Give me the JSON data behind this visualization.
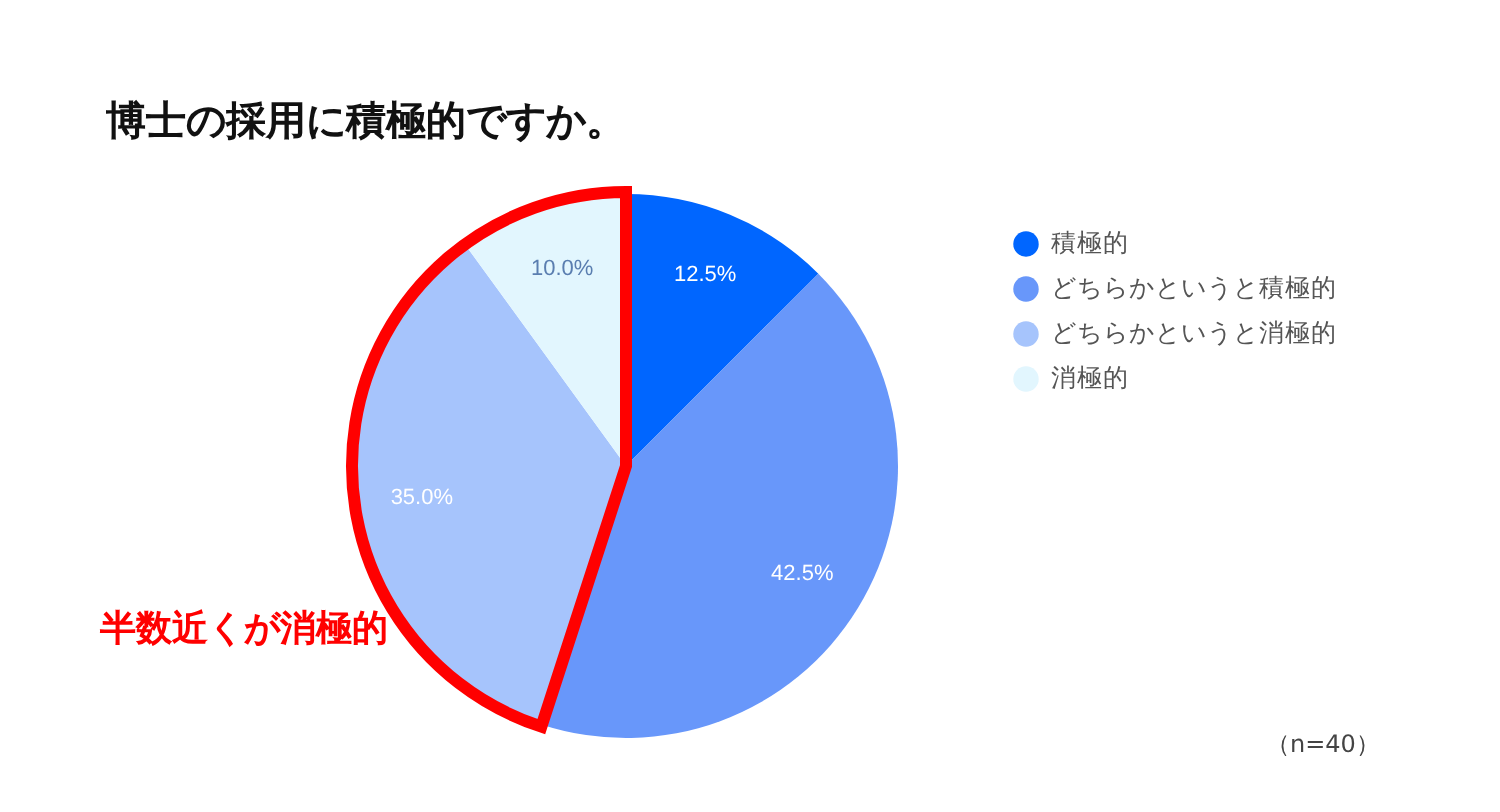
{
  "chart_data": {
    "type": "pie",
    "title": "博士の採用に積極的ですか。",
    "categories": [
      "積極的",
      "どちらかというと積極的",
      "どちらかというと消極的",
      "消極的"
    ],
    "values": [
      12.5,
      42.5,
      35,
      10
    ],
    "colors": [
      "#0066ff",
      "#6897fa",
      "#a6c4fc",
      "#e2f6fe"
    ],
    "value_labels": [
      "12.5%",
      "42.5%",
      "35.0%",
      "10.0%"
    ],
    "legend": "right",
    "annotations": [
      "半数近くが消極的",
      "（n=40）"
    ]
  }
}
